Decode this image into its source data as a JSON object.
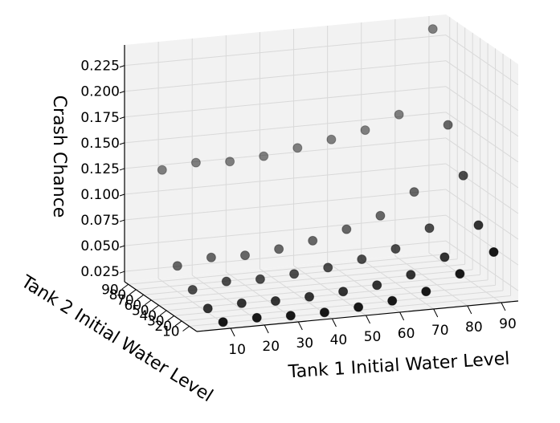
{
  "chart_data": {
    "type": "scatter",
    "projection": "3d",
    "title": "",
    "xlabel": "Tank 1 Initial Water Level",
    "ylabel": "Tank 2 Initial Water Level",
    "zlabel": "Crash Chance",
    "x_ticks": [
      "10",
      "20",
      "30",
      "40",
      "50",
      "60",
      "70",
      "80",
      "90"
    ],
    "y_ticks": [
      "10",
      "20",
      "30",
      "40",
      "50",
      "60",
      "70",
      "80",
      "90"
    ],
    "y_tick_text": [
      "10",
      "20",
      "30",
      "40",
      "50",
      "60",
      "70",
      "80",
      "90"
    ],
    "z_ticks": [
      "0.025",
      "0.050",
      "0.075",
      "0.100",
      "0.125",
      "0.150",
      "0.175",
      "0.200",
      "0.225"
    ],
    "xlim": [
      0,
      95
    ],
    "ylim": [
      0,
      95
    ],
    "zlim": [
      0.015,
      0.245
    ],
    "grid": true,
    "marker_color": "#000000",
    "series": [
      {
        "y": 90,
        "x": [
          10,
          20,
          30,
          40,
          50,
          60,
          70,
          80,
          90
        ],
        "z": [
          0.123,
          0.127,
          0.125,
          0.127,
          0.132,
          0.137,
          0.143,
          0.155,
          0.235
        ]
      },
      {
        "y": 70,
        "x": [
          10,
          20,
          30,
          40,
          50,
          60,
          70,
          80,
          90
        ],
        "z": [
          0.04,
          0.045,
          0.044,
          0.047,
          0.052,
          0.06,
          0.07,
          0.09,
          0.152
        ]
      },
      {
        "y": 50,
        "x": [
          10,
          20,
          30,
          40,
          50,
          60,
          70,
          80,
          90
        ],
        "z": [
          0.027,
          0.032,
          0.031,
          0.033,
          0.036,
          0.041,
          0.048,
          0.065,
          0.113
        ]
      },
      {
        "y": 30,
        "x": [
          10,
          20,
          30,
          40,
          50,
          60,
          70,
          80,
          90
        ],
        "z": [
          0.019,
          0.021,
          0.02,
          0.021,
          0.023,
          0.026,
          0.033,
          0.047,
          0.075
        ]
      },
      {
        "y": 10,
        "x": [
          10,
          20,
          30,
          40,
          50,
          60,
          70,
          80,
          90
        ],
        "z": [
          0.016,
          0.017,
          0.016,
          0.016,
          0.018,
          0.021,
          0.027,
          0.041,
          0.059
        ]
      }
    ]
  }
}
